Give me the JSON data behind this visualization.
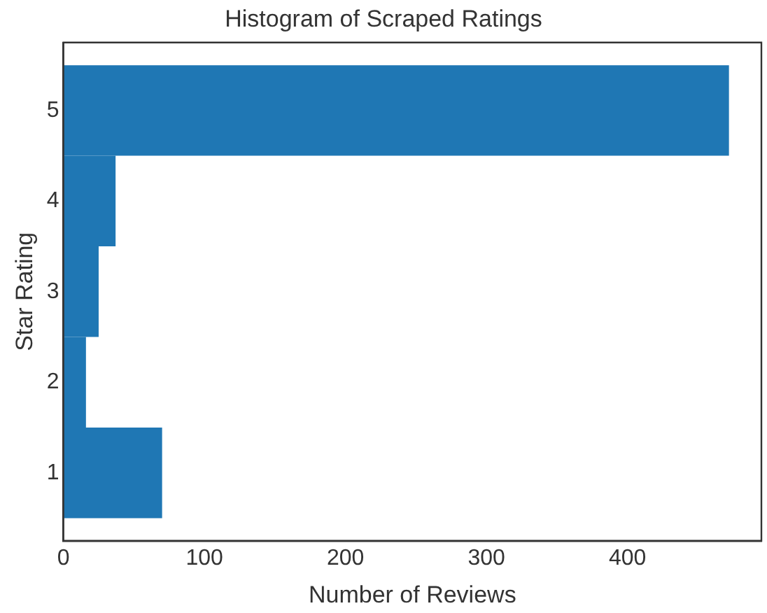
{
  "chart_data": {
    "type": "histogram",
    "orientation": "horizontal",
    "title": "Histogram of Scraped Ratings",
    "xlabel": "Number of Reviews",
    "ylabel": "Star Rating",
    "bins": [
      0.5,
      1.5,
      2.5,
      3.5,
      4.5,
      5.5
    ],
    "values": [
      70,
      16,
      25,
      37,
      472
    ],
    "color": "#1f77b4",
    "xlim": [
      0,
      495
    ],
    "xticks": [
      0,
      100,
      200,
      300,
      400
    ],
    "ylim": [
      0.25,
      5.75
    ],
    "yticks": [
      1,
      2,
      3,
      4,
      5
    ]
  }
}
